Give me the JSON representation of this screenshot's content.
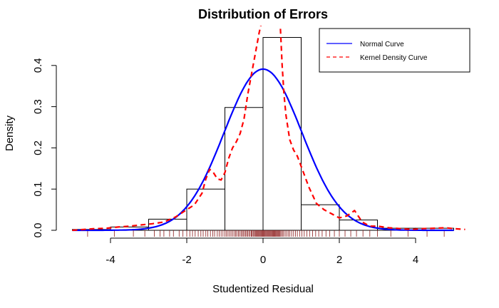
{
  "chart_data": {
    "type": "histogram",
    "title": "Distribution of Errors",
    "xlabel": "Studentized Residual",
    "ylabel": "Density",
    "xlim": [
      -5,
      5
    ],
    "ylim": [
      0,
      0.43
    ],
    "x_ticks": [
      -4,
      -2,
      0,
      2,
      4
    ],
    "y_ticks": [
      0.0,
      0.1,
      0.2,
      0.3,
      0.4
    ],
    "y_tick_labels": [
      "0.0",
      "0.1",
      "0.2",
      "0.3",
      "0.4"
    ],
    "histogram": {
      "bin_edges": [
        -5,
        -4,
        -3,
        -2,
        -1,
        0,
        1,
        2,
        3,
        4,
        5
      ],
      "densities": [
        0.002,
        0.008,
        0.027,
        0.1,
        0.298,
        0.468,
        0.062,
        0.025,
        0.005,
        0.005
      ],
      "color": "#000000"
    },
    "series": [
      {
        "name": "Normal Curve",
        "kind": "line",
        "color": "#0000ff",
        "dash": "solid",
        "mean": 0.0,
        "sd": 1.02,
        "x_range": [
          -5,
          5
        ]
      },
      {
        "name": "Kernel Density Curve",
        "kind": "line",
        "color": "#ff0000",
        "dash": "dashed",
        "x": [
          -5.0,
          -4.7,
          -4.4,
          -4.1,
          -3.8,
          -3.5,
          -3.2,
          -2.9,
          -2.6,
          -2.3,
          -2.0,
          -1.8,
          -1.6,
          -1.5,
          -1.4,
          -1.3,
          -1.2,
          -1.1,
          -1.0,
          -0.9,
          -0.8,
          -0.7,
          -0.6,
          -0.5,
          -0.4,
          -0.3,
          -0.2,
          -0.1,
          -0.05,
          0.45,
          0.5,
          0.55,
          0.6,
          0.7,
          0.8,
          0.9,
          1.0,
          1.1,
          1.2,
          1.3,
          1.4,
          1.6,
          1.8,
          2.0,
          2.2,
          2.4,
          2.6,
          2.8,
          3.0,
          3.3,
          3.6,
          3.9,
          4.2,
          4.5,
          4.8,
          5.0,
          5.3
        ],
        "y": [
          0.0,
          0.002,
          0.004,
          0.005,
          0.008,
          0.01,
          0.013,
          0.016,
          0.02,
          0.032,
          0.05,
          0.062,
          0.09,
          0.125,
          0.148,
          0.14,
          0.125,
          0.122,
          0.14,
          0.175,
          0.2,
          0.215,
          0.235,
          0.27,
          0.33,
          0.38,
          0.43,
          0.48,
          0.5,
          0.5,
          0.4,
          0.33,
          0.28,
          0.22,
          0.195,
          0.18,
          0.155,
          0.13,
          0.105,
          0.085,
          0.065,
          0.05,
          0.04,
          0.03,
          0.035,
          0.048,
          0.02,
          0.01,
          0.01,
          0.006,
          0.004,
          0.002,
          0.004,
          0.005,
          0.006,
          0.004,
          0.002
        ]
      }
    ],
    "rug": {
      "color": "#8b1a1a",
      "x": [
        -4.6,
        -3.9,
        -3.4,
        -3.1,
        -2.85,
        -2.7,
        -2.6,
        -2.45,
        -2.35,
        -2.2,
        -2.1,
        -2.0,
        -1.92,
        -1.85,
        -1.78,
        -1.7,
        -1.63,
        -1.57,
        -1.5,
        -1.45,
        -1.38,
        -1.32,
        -1.27,
        -1.2,
        -1.15,
        -1.1,
        -1.05,
        -1.0,
        -0.96,
        -0.92,
        -0.88,
        -0.84,
        -0.8,
        -0.76,
        -0.72,
        -0.69,
        -0.65,
        -0.62,
        -0.58,
        -0.55,
        -0.52,
        -0.49,
        -0.46,
        -0.43,
        -0.4,
        -0.37,
        -0.34,
        -0.31,
        -0.29,
        -0.26,
        -0.24,
        -0.21,
        -0.19,
        -0.17,
        -0.15,
        -0.13,
        -0.11,
        -0.09,
        -0.07,
        -0.05,
        -0.03,
        -0.01,
        0.01,
        0.03,
        0.05,
        0.07,
        0.09,
        0.11,
        0.13,
        0.15,
        0.17,
        0.19,
        0.21,
        0.23,
        0.25,
        0.27,
        0.29,
        0.31,
        0.33,
        0.35,
        0.37,
        0.39,
        0.41,
        0.43,
        0.45,
        0.48,
        0.51,
        0.54,
        0.58,
        0.62,
        0.66,
        0.7,
        0.75,
        0.8,
        0.85,
        0.9,
        0.96,
        1.02,
        1.08,
        1.15,
        1.22,
        1.3,
        1.38,
        1.46,
        1.55,
        1.65,
        1.75,
        1.87,
        2.0,
        2.15,
        2.3,
        2.45,
        2.62,
        2.8,
        3.0,
        3.35,
        3.8,
        4.3,
        4.75
      ]
    },
    "legend": {
      "position": "top-right",
      "entries": [
        "Normal Curve",
        "Kernel Density Curve"
      ]
    }
  }
}
